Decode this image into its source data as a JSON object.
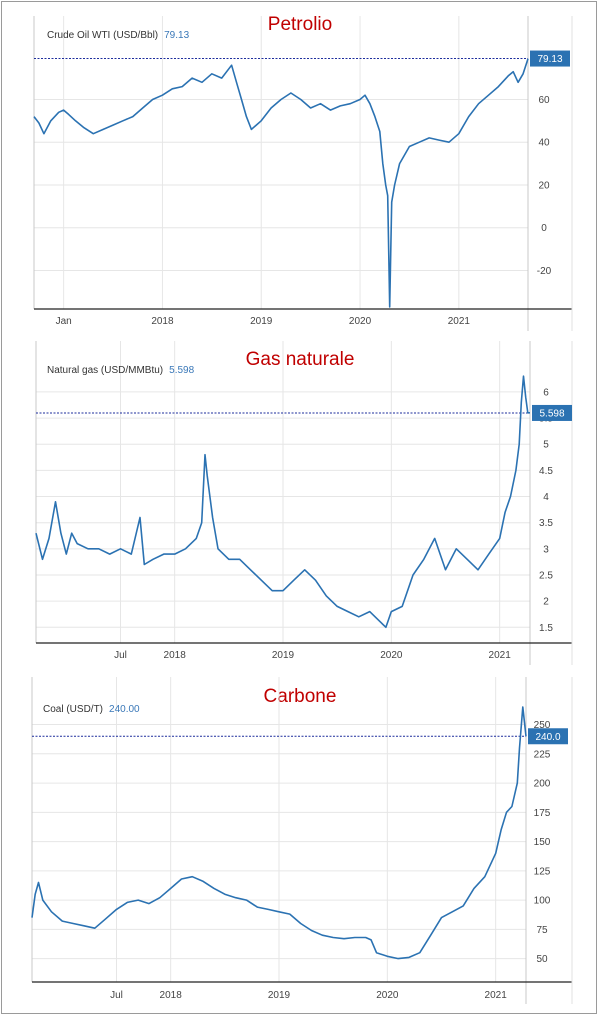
{
  "colors": {
    "line": "#2b72b2",
    "title": "#c00000",
    "badge": "#2b72b2",
    "ref": "#1c2c9c",
    "grid": "#e6e6e6"
  },
  "chart_data": [
    {
      "type": "line",
      "title": "Petrolio",
      "series_label": "Crude Oil WTI (USD/Bbl)",
      "current_value_text": "79.13",
      "badge": "79.13",
      "reference_value": 79.13,
      "x_tick_labels": [
        "Jan",
        "2018",
        "2019",
        "2020",
        "2021"
      ],
      "x_ticks": [
        2017.0,
        2018.0,
        2019.0,
        2020.0,
        2021.0
      ],
      "xlim": [
        2016.7,
        2021.7
      ],
      "ylim": [
        -38,
        85
      ],
      "y_ticks": [
        -20,
        0,
        20,
        40,
        60
      ],
      "y_tick_labels": [
        "-20",
        "0",
        "20",
        "40",
        "60"
      ],
      "x": [
        2016.7,
        2016.75,
        2016.8,
        2016.87,
        2016.95,
        2017.0,
        2017.05,
        2017.12,
        2017.2,
        2017.3,
        2017.4,
        2017.5,
        2017.6,
        2017.7,
        2017.8,
        2017.9,
        2018.0,
        2018.1,
        2018.2,
        2018.3,
        2018.4,
        2018.5,
        2018.6,
        2018.7,
        2018.75,
        2018.8,
        2018.85,
        2018.9,
        2018.95,
        2019.0,
        2019.1,
        2019.2,
        2019.3,
        2019.4,
        2019.5,
        2019.6,
        2019.7,
        2019.8,
        2019.9,
        2020.0,
        2020.05,
        2020.1,
        2020.15,
        2020.2,
        2020.23,
        2020.26,
        2020.28,
        2020.3,
        2020.32,
        2020.35,
        2020.4,
        2020.5,
        2020.6,
        2020.7,
        2020.8,
        2020.9,
        2021.0,
        2021.1,
        2021.2,
        2021.3,
        2021.4,
        2021.5,
        2021.55,
        2021.6,
        2021.65,
        2021.7
      ],
      "y": [
        52,
        49,
        44,
        50,
        54,
        55,
        53,
        50,
        47,
        44,
        46,
        48,
        50,
        52,
        56,
        60,
        62,
        65,
        66,
        70,
        68,
        72,
        70,
        76,
        68,
        60,
        52,
        46,
        48,
        50,
        56,
        60,
        63,
        60,
        56,
        58,
        55,
        57,
        58,
        60,
        62,
        58,
        52,
        45,
        30,
        20,
        15,
        -37,
        12,
        20,
        30,
        38,
        40,
        42,
        41,
        40,
        44,
        52,
        58,
        62,
        66,
        71,
        73,
        68,
        72,
        79
      ]
    },
    {
      "type": "line",
      "title": "Gas naturale",
      "series_label": "Natural gas (USD/MMBtu)",
      "current_value_text": "5.598",
      "badge": "5.598",
      "reference_value": 5.598,
      "x_tick_labels": [
        "Jul",
        "2018",
        "2019",
        "2020",
        "2021"
      ],
      "x_ticks": [
        2017.5,
        2018.0,
        2019.0,
        2020.0,
        2021.0
      ],
      "xlim": [
        2016.72,
        2021.28
      ],
      "ylim": [
        1.2,
        6.4
      ],
      "y_ticks": [
        1.5,
        2,
        2.5,
        3,
        3.5,
        4,
        4.5,
        5,
        5.5,
        6
      ],
      "y_tick_labels": [
        "1.5",
        "2",
        "2.5",
        "3",
        "3.5",
        "4",
        "4.5",
        "5",
        "5.5",
        "6"
      ],
      "x": [
        2016.72,
        2016.78,
        2016.84,
        2016.9,
        2016.95,
        2017.0,
        2017.05,
        2017.1,
        2017.2,
        2017.3,
        2017.4,
        2017.5,
        2017.6,
        2017.68,
        2017.72,
        2017.8,
        2017.9,
        2018.0,
        2018.1,
        2018.2,
        2018.25,
        2018.28,
        2018.3,
        2018.35,
        2018.4,
        2018.5,
        2018.6,
        2018.7,
        2018.8,
        2018.9,
        2019.0,
        2019.1,
        2019.2,
        2019.3,
        2019.4,
        2019.5,
        2019.6,
        2019.7,
        2019.8,
        2019.9,
        2019.95,
        2020.0,
        2020.1,
        2020.2,
        2020.3,
        2020.4,
        2020.5,
        2020.6,
        2020.7,
        2020.8,
        2020.9,
        2021.0,
        2021.05,
        2021.1,
        2021.15,
        2021.18,
        2021.2,
        2021.22,
        2021.24,
        2021.26,
        2021.28
      ],
      "y": [
        3.3,
        2.8,
        3.2,
        3.9,
        3.3,
        2.9,
        3.3,
        3.1,
        3.0,
        3.0,
        2.9,
        3.0,
        2.9,
        3.6,
        2.7,
        2.8,
        2.9,
        2.9,
        3.0,
        3.2,
        3.5,
        4.8,
        4.4,
        3.6,
        3.0,
        2.8,
        2.8,
        2.6,
        2.4,
        2.2,
        2.2,
        2.4,
        2.6,
        2.4,
        2.1,
        1.9,
        1.8,
        1.7,
        1.8,
        1.6,
        1.5,
        1.8,
        1.9,
        2.5,
        2.8,
        3.2,
        2.6,
        3.0,
        2.8,
        2.6,
        2.9,
        3.2,
        3.7,
        4.0,
        4.5,
        5.0,
        5.8,
        6.3,
        5.9,
        5.6,
        5.6
      ]
    },
    {
      "type": "line",
      "title": "Carbone",
      "series_label": "Coal (USD/T)",
      "current_value_text": "240.00",
      "badge": "240.0",
      "reference_value": 240.0,
      "x_tick_labels": [
        "Jul",
        "2018",
        "2019",
        "2020",
        "2021"
      ],
      "x_ticks": [
        2017.5,
        2018.0,
        2019.0,
        2020.0,
        2021.0
      ],
      "xlim": [
        2016.72,
        2021.28
      ],
      "ylim": [
        30,
        265
      ],
      "y_ticks": [
        50,
        75,
        100,
        125,
        150,
        175,
        200,
        225,
        250
      ],
      "y_tick_labels": [
        "50",
        "75",
        "100",
        "125",
        "150",
        "175",
        "200",
        "225",
        "250"
      ],
      "x": [
        2016.72,
        2016.75,
        2016.78,
        2016.82,
        2016.9,
        2017.0,
        2017.1,
        2017.2,
        2017.3,
        2017.4,
        2017.5,
        2017.6,
        2017.7,
        2017.8,
        2017.9,
        2018.0,
        2018.1,
        2018.2,
        2018.3,
        2018.4,
        2018.5,
        2018.6,
        2018.7,
        2018.8,
        2018.9,
        2019.0,
        2019.1,
        2019.2,
        2019.3,
        2019.4,
        2019.5,
        2019.6,
        2019.7,
        2019.8,
        2019.85,
        2019.9,
        2020.0,
        2020.1,
        2020.2,
        2020.3,
        2020.4,
        2020.5,
        2020.6,
        2020.7,
        2020.8,
        2020.9,
        2021.0,
        2021.05,
        2021.1,
        2021.15,
        2021.2,
        2021.22,
        2021.25,
        2021.28
      ],
      "y": [
        85,
        105,
        115,
        100,
        90,
        82,
        80,
        78,
        76,
        84,
        92,
        98,
        100,
        97,
        102,
        110,
        118,
        120,
        116,
        110,
        105,
        102,
        100,
        94,
        92,
        90,
        88,
        80,
        74,
        70,
        68,
        67,
        68,
        68,
        66,
        55,
        52,
        50,
        51,
        55,
        70,
        85,
        90,
        95,
        110,
        120,
        140,
        160,
        175,
        180,
        200,
        230,
        265,
        240
      ]
    }
  ]
}
